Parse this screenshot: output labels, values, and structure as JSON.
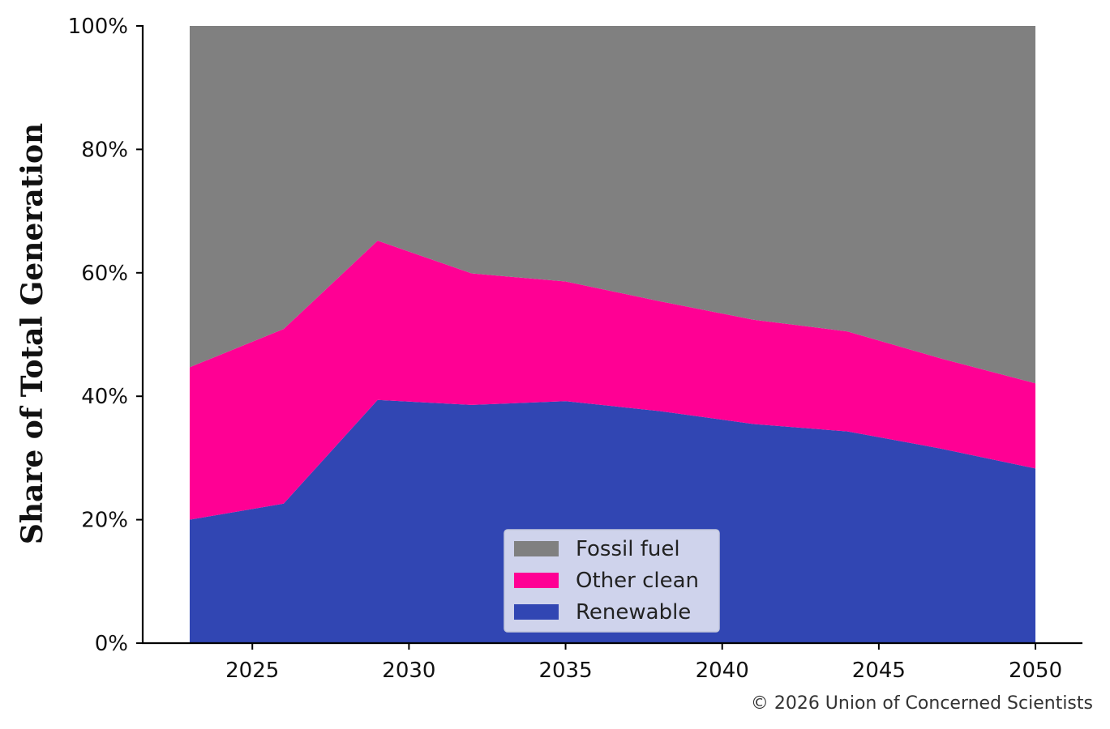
{
  "chart_data": {
    "type": "area",
    "stacked": true,
    "x": [
      2023,
      2026,
      2029,
      2032,
      2035,
      2038,
      2041,
      2044,
      2047,
      2050
    ],
    "series": [
      {
        "name": "Renewable",
        "color": "#3146b3",
        "values": [
          20.0,
          22.6,
          39.4,
          38.6,
          39.2,
          37.6,
          35.5,
          34.3,
          31.5,
          28.3
        ]
      },
      {
        "name": "Other clean",
        "color": "#ff0094",
        "values": [
          24.7,
          28.3,
          25.8,
          21.3,
          19.4,
          17.8,
          16.9,
          16.2,
          14.6,
          13.8
        ]
      },
      {
        "name": "Fossil fuel",
        "color": "#808080",
        "values": [
          55.3,
          49.1,
          34.8,
          40.1,
          41.4,
          44.6,
          47.6,
          49.5,
          53.9,
          57.9
        ]
      }
    ],
    "legend_order": [
      "Fossil fuel",
      "Other clean",
      "Renewable"
    ],
    "legend_position": "bottom-center",
    "xlabel": "",
    "ylabel": "Share of Total Generation",
    "xlim": [
      2021.5,
      2051.5
    ],
    "ylim": [
      0,
      100
    ],
    "xticks": [
      2025,
      2030,
      2035,
      2040,
      2045,
      2050
    ],
    "yticks": [
      0,
      20,
      40,
      60,
      80,
      100
    ],
    "ytick_labels": [
      "0%",
      "20%",
      "40%",
      "60%",
      "80%",
      "100%"
    ],
    "grid": false
  },
  "credit": "© 2026 Union of Concerned Scientists"
}
